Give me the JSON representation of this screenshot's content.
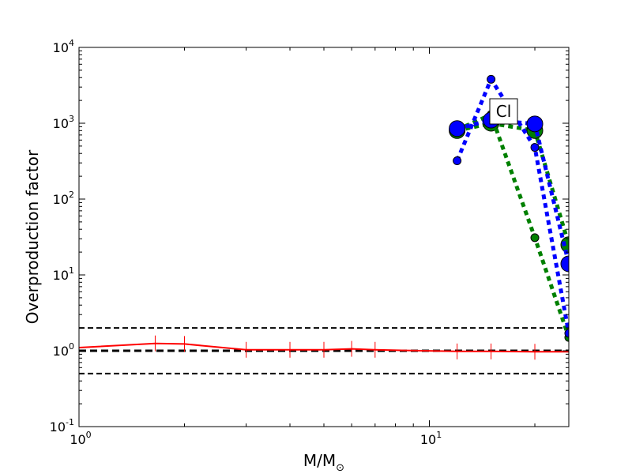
{
  "chart_data": {
    "type": "line",
    "xscale": "log",
    "yscale": "log",
    "xlim": [
      1,
      25
    ],
    "ylim": [
      0.1,
      10000
    ],
    "xlabel": "M/M",
    "xlabel_sub": "⊙",
    "ylabel": "Overproduction factor",
    "annotation": "Cl",
    "x_ticks": [
      {
        "value": 1,
        "base": "10",
        "exp": "0"
      },
      {
        "value": 10,
        "base": "10",
        "exp": "1"
      }
    ],
    "y_ticks": [
      {
        "value": 0.1,
        "base": "10",
        "exp": "-1"
      },
      {
        "value": 1,
        "base": "10",
        "exp": "0"
      },
      {
        "value": 10,
        "base": "10",
        "exp": "1"
      },
      {
        "value": 100,
        "base": "10",
        "exp": "2"
      },
      {
        "value": 1000,
        "base": "10",
        "exp": "3"
      },
      {
        "value": 10000,
        "base": "10",
        "exp": "4"
      }
    ],
    "reference_lines": [
      {
        "y": 2.0,
        "color": "#000000",
        "style": "dashed",
        "weight": "normal"
      },
      {
        "y": 1.0,
        "color": "#000000",
        "style": "dashed",
        "weight": "thick"
      },
      {
        "y": 0.5,
        "color": "#000000",
        "style": "dashed",
        "weight": "normal"
      }
    ],
    "series": [
      {
        "color": "#ff0000",
        "style": "solid",
        "marker": "vline",
        "x": [
          1.0,
          1.65,
          2.0,
          3.0,
          4.0,
          5.0,
          6.0,
          7.0,
          12.0,
          15.0,
          20.0,
          25.0
        ],
        "y": [
          1.1,
          1.25,
          1.23,
          1.03,
          1.03,
          1.03,
          1.06,
          1.03,
          0.98,
          0.98,
          0.97,
          0.97
        ]
      },
      {
        "color": "#008000",
        "style": "dotted",
        "x": [
          12,
          15,
          20,
          25
        ],
        "y": [
          800,
          1000,
          800,
          25
        ],
        "marker_size": "large"
      },
      {
        "color": "#008000",
        "style": "dotted",
        "x": [
          12,
          15,
          20,
          25
        ],
        "y": [
          820,
          1300,
          31,
          1.5
        ],
        "marker_size": "small"
      },
      {
        "color": "#0000ff",
        "style": "dotted",
        "x": [
          12,
          15,
          20,
          25
        ],
        "y": [
          850,
          1100,
          980,
          14
        ],
        "marker_size": "large"
      },
      {
        "color": "#0000ff",
        "style": "dotted",
        "x": [
          12,
          15,
          20,
          25
        ],
        "y": [
          320,
          3800,
          480,
          1.7
        ],
        "marker_size": "small"
      }
    ]
  }
}
